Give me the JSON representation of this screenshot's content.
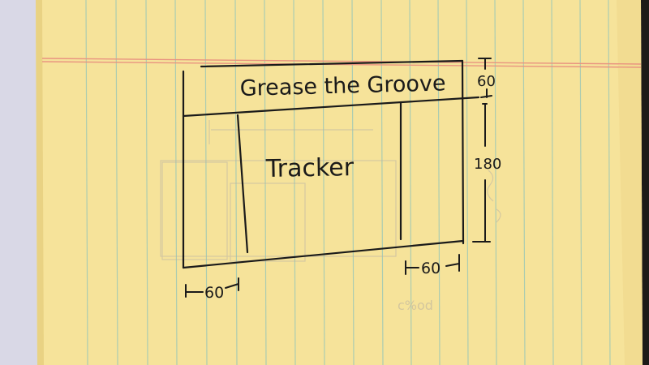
{
  "sketch": {
    "title": "Grease the Groove",
    "body_label": "Tracker",
    "dim_top_height": "60",
    "dim_body_height": "180",
    "dim_left_width": "60",
    "dim_right_width": "60"
  },
  "colors": {
    "paper": "#f6e39a",
    "paper_edge": "#e9d283",
    "margin_line": "#e99480",
    "rule_line": "#9fc9b6",
    "ink": "#1a1a1a",
    "backdrop_left": "#d9d8e6",
    "backdrop_right": "#1d1b18"
  }
}
